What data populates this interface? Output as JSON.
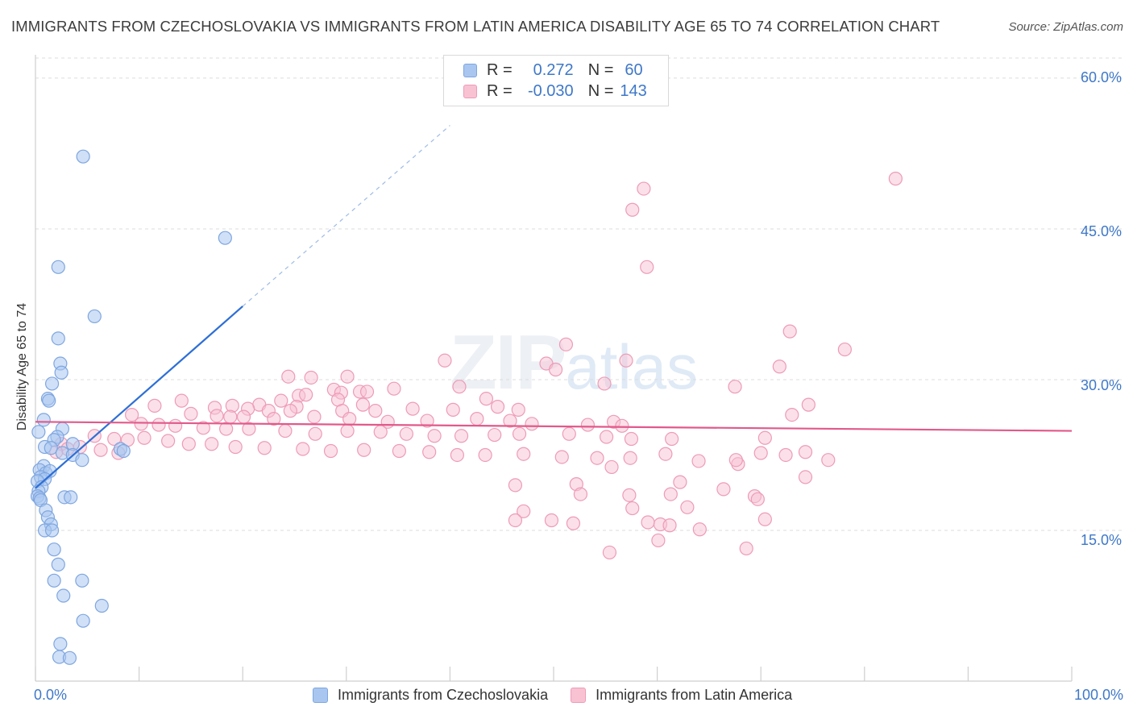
{
  "title": "IMMIGRANTS FROM CZECHOSLOVAKIA VS IMMIGRANTS FROM LATIN AMERICA DISABILITY AGE 65 TO 74 CORRELATION CHART",
  "source": "Source: ZipAtlas.com",
  "watermark": {
    "zip": "ZIP",
    "atlas": "atlas"
  },
  "legend_top": {
    "rows": [
      {
        "r_label": "R =",
        "r_value": "0.272",
        "n_label": "N =",
        "n_value": "60"
      },
      {
        "r_label": "R =",
        "r_value": "-0.030",
        "n_label": "N =",
        "n_value": "143"
      }
    ]
  },
  "legend_bottom": {
    "items": [
      {
        "label": "Immigrants from Czechoslovakia"
      },
      {
        "label": "Immigrants from Latin America"
      }
    ]
  },
  "colors": {
    "blue_fill": "#a9c6f0",
    "blue_stroke": "#7ea6e0",
    "blue_line": "#2e6fd6",
    "pink_fill": "#f8c2d3",
    "pink_stroke": "#ee9bb7",
    "pink_line": "#e2598a",
    "axis_text": "#3e78c8",
    "grid": "#dcdcdc"
  },
  "chart_data": {
    "type": "scatter",
    "title": "IMMIGRANTS FROM CZECHOSLOVAKIA VS IMMIGRANTS FROM LATIN AMERICA DISABILITY AGE 65 TO 74 CORRELATION CHART",
    "xlabel": "",
    "ylabel": "Disability Age 65 to 74",
    "xlim": [
      0,
      100
    ],
    "ylim": [
      0,
      62
    ],
    "x_tick_labels": [
      "0.0%",
      "100.0%"
    ],
    "y_ticks": [
      15,
      30,
      45,
      60
    ],
    "y_tick_labels": [
      "15.0%",
      "30.0%",
      "45.0%",
      "60.0%"
    ],
    "grid": "horizontal dashed",
    "legend_position": "top-center",
    "series": [
      {
        "name": "Immigrants from Czechoslovakia",
        "color": "blue",
        "R": 0.272,
        "N": 60,
        "trend": {
          "x0": 0.0,
          "y0": 19.2,
          "x1": 20.0,
          "y1": 37.3,
          "dash_to_x": 40.0,
          "dash_to_y": 55.3
        },
        "points": [
          [
            4.6,
            52.2
          ],
          [
            18.3,
            44.1
          ],
          [
            2.2,
            41.2
          ],
          [
            5.7,
            36.3
          ],
          [
            2.2,
            34.1
          ],
          [
            2.4,
            31.6
          ],
          [
            2.5,
            30.7
          ],
          [
            1.6,
            29.6
          ],
          [
            1.2,
            28.1
          ],
          [
            1.3,
            27.9
          ],
          [
            0.8,
            26.0
          ],
          [
            2.6,
            25.1
          ],
          [
            0.3,
            24.8
          ],
          [
            2.1,
            24.3
          ],
          [
            1.8,
            24.0
          ],
          [
            3.6,
            23.6
          ],
          [
            0.9,
            23.3
          ],
          [
            1.5,
            23.2
          ],
          [
            2.6,
            22.7
          ],
          [
            8.2,
            23.1
          ],
          [
            8.5,
            22.9
          ],
          [
            3.6,
            22.5
          ],
          [
            4.5,
            22.0
          ],
          [
            0.8,
            21.4
          ],
          [
            0.4,
            21.0
          ],
          [
            1.0,
            20.7
          ],
          [
            1.4,
            20.9
          ],
          [
            0.5,
            20.3
          ],
          [
            0.9,
            20.1
          ],
          [
            0.2,
            19.9
          ],
          [
            0.6,
            19.3
          ],
          [
            0.3,
            18.9
          ],
          [
            0.2,
            18.4
          ],
          [
            0.4,
            18.2
          ],
          [
            2.8,
            18.3
          ],
          [
            3.4,
            18.3
          ],
          [
            0.5,
            18.0
          ],
          [
            1.0,
            17.0
          ],
          [
            1.2,
            16.3
          ],
          [
            1.5,
            15.6
          ],
          [
            0.9,
            15.0
          ],
          [
            1.6,
            15.0
          ],
          [
            1.8,
            13.1
          ],
          [
            2.2,
            11.6
          ],
          [
            1.8,
            10.0
          ],
          [
            4.5,
            10.0
          ],
          [
            2.7,
            8.5
          ],
          [
            6.4,
            7.5
          ],
          [
            4.6,
            6.0
          ],
          [
            2.4,
            3.7
          ],
          [
            2.3,
            2.4
          ],
          [
            3.3,
            2.3
          ]
        ]
      },
      {
        "name": "Immigrants from Latin America",
        "color": "pink",
        "R": -0.03,
        "N": 143,
        "trend": {
          "x0": 0.0,
          "y0": 25.8,
          "x1": 100.0,
          "y1": 24.9
        },
        "points": [
          [
            83.0,
            50.0
          ],
          [
            58.7,
            49.0
          ],
          [
            57.6,
            46.9
          ],
          [
            59.0,
            41.2
          ],
          [
            72.8,
            34.8
          ],
          [
            78.1,
            33.0
          ],
          [
            51.2,
            33.5
          ],
          [
            49.3,
            31.6
          ],
          [
            57.0,
            31.9
          ],
          [
            39.5,
            31.9
          ],
          [
            50.2,
            31.0
          ],
          [
            71.8,
            31.3
          ],
          [
            54.9,
            29.6
          ],
          [
            67.5,
            29.3
          ],
          [
            24.4,
            30.3
          ],
          [
            26.6,
            30.2
          ],
          [
            30.1,
            30.3
          ],
          [
            34.6,
            29.1
          ],
          [
            28.8,
            29.0
          ],
          [
            29.5,
            28.7
          ],
          [
            31.3,
            28.8
          ],
          [
            32.0,
            28.8
          ],
          [
            25.4,
            28.4
          ],
          [
            26.1,
            28.5
          ],
          [
            40.9,
            29.3
          ],
          [
            23.7,
            27.9
          ],
          [
            29.2,
            28.0
          ],
          [
            31.6,
            27.5
          ],
          [
            43.5,
            28.1
          ],
          [
            14.1,
            27.9
          ],
          [
            21.6,
            27.5
          ],
          [
            25.2,
            27.3
          ],
          [
            19.0,
            27.4
          ],
          [
            11.5,
            27.4
          ],
          [
            17.3,
            27.2
          ],
          [
            20.5,
            27.1
          ],
          [
            22.5,
            26.9
          ],
          [
            24.6,
            26.9
          ],
          [
            29.6,
            26.9
          ],
          [
            32.8,
            26.9
          ],
          [
            36.4,
            27.1
          ],
          [
            40.3,
            27.0
          ],
          [
            44.6,
            27.3
          ],
          [
            46.6,
            27.0
          ],
          [
            74.6,
            27.5
          ],
          [
            73.0,
            26.5
          ],
          [
            9.3,
            26.5
          ],
          [
            15.0,
            26.6
          ],
          [
            17.5,
            26.4
          ],
          [
            18.8,
            26.3
          ],
          [
            20.1,
            26.3
          ],
          [
            23.0,
            26.1
          ],
          [
            26.9,
            26.3
          ],
          [
            30.3,
            26.1
          ],
          [
            34.0,
            25.8
          ],
          [
            37.8,
            25.9
          ],
          [
            42.6,
            26.1
          ],
          [
            45.8,
            25.9
          ],
          [
            47.9,
            25.6
          ],
          [
            53.3,
            25.5
          ],
          [
            55.8,
            25.8
          ],
          [
            56.6,
            25.4
          ],
          [
            10.2,
            25.6
          ],
          [
            11.9,
            25.5
          ],
          [
            13.5,
            25.4
          ],
          [
            16.2,
            25.2
          ],
          [
            18.4,
            25.1
          ],
          [
            20.6,
            25.1
          ],
          [
            24.1,
            24.9
          ],
          [
            27.0,
            24.6
          ],
          [
            30.1,
            24.9
          ],
          [
            33.3,
            24.8
          ],
          [
            35.8,
            24.6
          ],
          [
            38.5,
            24.4
          ],
          [
            41.1,
            24.4
          ],
          [
            44.3,
            24.5
          ],
          [
            46.7,
            24.6
          ],
          [
            51.5,
            24.6
          ],
          [
            55.1,
            24.3
          ],
          [
            57.5,
            24.1
          ],
          [
            61.4,
            24.1
          ],
          [
            70.4,
            24.2
          ],
          [
            5.7,
            24.4
          ],
          [
            7.6,
            24.1
          ],
          [
            8.9,
            24.0
          ],
          [
            10.5,
            24.2
          ],
          [
            12.8,
            23.9
          ],
          [
            14.8,
            23.6
          ],
          [
            17.0,
            23.6
          ],
          [
            19.3,
            23.3
          ],
          [
            22.1,
            23.2
          ],
          [
            25.8,
            23.1
          ],
          [
            28.5,
            22.9
          ],
          [
            31.7,
            23.0
          ],
          [
            35.1,
            22.9
          ],
          [
            38.0,
            22.8
          ],
          [
            40.7,
            22.5
          ],
          [
            43.4,
            22.5
          ],
          [
            47.1,
            22.6
          ],
          [
            50.8,
            22.3
          ],
          [
            54.2,
            22.2
          ],
          [
            57.4,
            22.2
          ],
          [
            60.8,
            22.6
          ],
          [
            64.0,
            21.9
          ],
          [
            67.8,
            21.6
          ],
          [
            70.0,
            22.7
          ],
          [
            74.3,
            22.8
          ],
          [
            76.5,
            22.0
          ],
          [
            2.5,
            23.6
          ],
          [
            3.1,
            23.1
          ],
          [
            4.3,
            23.3
          ],
          [
            6.3,
            23.0
          ],
          [
            8.0,
            22.7
          ],
          [
            2.0,
            22.8
          ],
          [
            55.6,
            21.3
          ],
          [
            72.4,
            22.5
          ],
          [
            67.6,
            22.0
          ],
          [
            74.3,
            20.3
          ],
          [
            62.2,
            19.8
          ],
          [
            52.2,
            19.6
          ],
          [
            46.3,
            19.5
          ],
          [
            61.3,
            18.6
          ],
          [
            66.4,
            19.1
          ],
          [
            52.6,
            18.6
          ],
          [
            57.6,
            17.2
          ],
          [
            47.1,
            16.9
          ],
          [
            57.3,
            18.5
          ],
          [
            62.9,
            17.3
          ],
          [
            59.1,
            15.8
          ],
          [
            69.4,
            18.4
          ],
          [
            69.7,
            18.1
          ],
          [
            46.3,
            16.0
          ],
          [
            49.8,
            16.0
          ],
          [
            51.9,
            15.7
          ],
          [
            60.3,
            15.6
          ],
          [
            61.2,
            15.5
          ],
          [
            70.4,
            16.1
          ],
          [
            60.1,
            14.0
          ],
          [
            68.6,
            13.2
          ],
          [
            55.4,
            12.8
          ],
          [
            64.1,
            15.1
          ]
        ]
      }
    ]
  }
}
